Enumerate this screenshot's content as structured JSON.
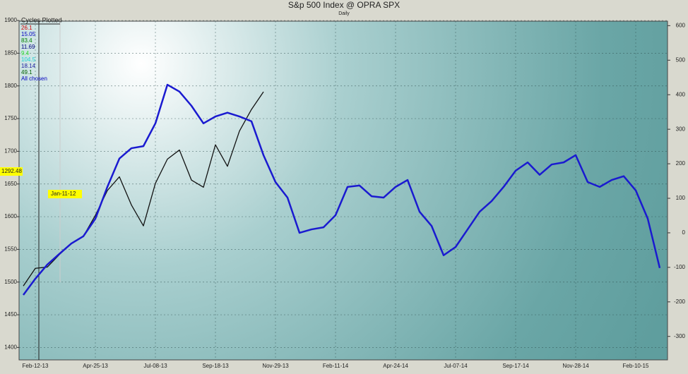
{
  "chart_data": {
    "type": "line",
    "title": "S&p 500 Index @ OPRA SPX",
    "subtitle": "Daily",
    "legend_title": "Cycles Plotted",
    "cycles": [
      {
        "label": "26.1",
        "color": "#d00000"
      },
      {
        "label": "15.05",
        "color": "#0000c0"
      },
      {
        "label": "83.4",
        "color": "#008000"
      },
      {
        "label": "11.69",
        "color": "#000080"
      },
      {
        "label": "9.4",
        "color": "#30e030"
      },
      {
        "label": "104.5",
        "color": "#20d0d0"
      },
      {
        "label": "18.14",
        "color": "#2020a0"
      },
      {
        "label": "49.1",
        "color": "#006000"
      },
      {
        "label": "All chosen",
        "color": "#0000c0"
      }
    ],
    "price_marker": "1292.48",
    "date_marker": "Jan-11-12",
    "categories": [
      null,
      "Feb-12-13",
      null,
      null,
      null,
      null,
      "Apr-25-13",
      null,
      null,
      null,
      null,
      "Jul-08-13",
      null,
      null,
      null,
      null,
      "Sep-18-13",
      null,
      null,
      null,
      null,
      "Nov-29-13",
      null,
      null,
      null,
      null,
      "Feb-11-14",
      null,
      null,
      null,
      null,
      "Apr-24-14",
      null,
      null,
      null,
      null,
      "Jul-07-14",
      null,
      null,
      null,
      null,
      "Sep-17-14",
      null,
      null,
      null,
      null,
      "Nov-28-14",
      null,
      null,
      null,
      null,
      "Feb-10-15",
      null,
      null
    ],
    "series": [
      {
        "color": "#111111",
        "values": [
          1494,
          1521,
          1523,
          1542,
          1559,
          1570,
          1602,
          1640,
          1661,
          1618,
          1586,
          1651,
          1688,
          1702,
          1656,
          1645,
          1710,
          1677,
          1731,
          1764,
          1791,
          null,
          null,
          null,
          null,
          null,
          null,
          null,
          null,
          null,
          null,
          null,
          null,
          null,
          null,
          null,
          null,
          null,
          null,
          null,
          null,
          null,
          null,
          null,
          null,
          null,
          null,
          null,
          null,
          null,
          null,
          null,
          null,
          null
        ]
      },
      {
        "color": "#1a1ad0",
        "axis": "y2",
        "values": [
          -180,
          -133,
          -92,
          -61,
          -31,
          -10,
          41,
          133,
          215,
          245,
          251,
          317,
          429,
          409,
          368,
          317,
          337,
          348,
          337,
          323,
          225,
          147,
          102,
          0,
          10,
          16,
          51,
          133,
          137,
          106,
          102,
          133,
          153,
          61,
          20,
          -65,
          -41,
          10,
          61,
          92,
          133,
          180,
          204,
          168,
          198,
          204,
          225,
          147,
          133,
          153,
          164,
          123,
          41,
          -102
        ]
      }
    ],
    "ylim": [
      1381,
      1899
    ],
    "yticks": [
      1400,
      1450,
      1500,
      1550,
      1600,
      1650,
      1700,
      1750,
      1800,
      1850,
      1900
    ],
    "y2lim": [
      -368,
      613
    ],
    "y2ticks": [
      -300,
      -200,
      -100,
      0,
      100,
      200,
      300,
      400,
      500,
      600
    ],
    "grid": true
  }
}
